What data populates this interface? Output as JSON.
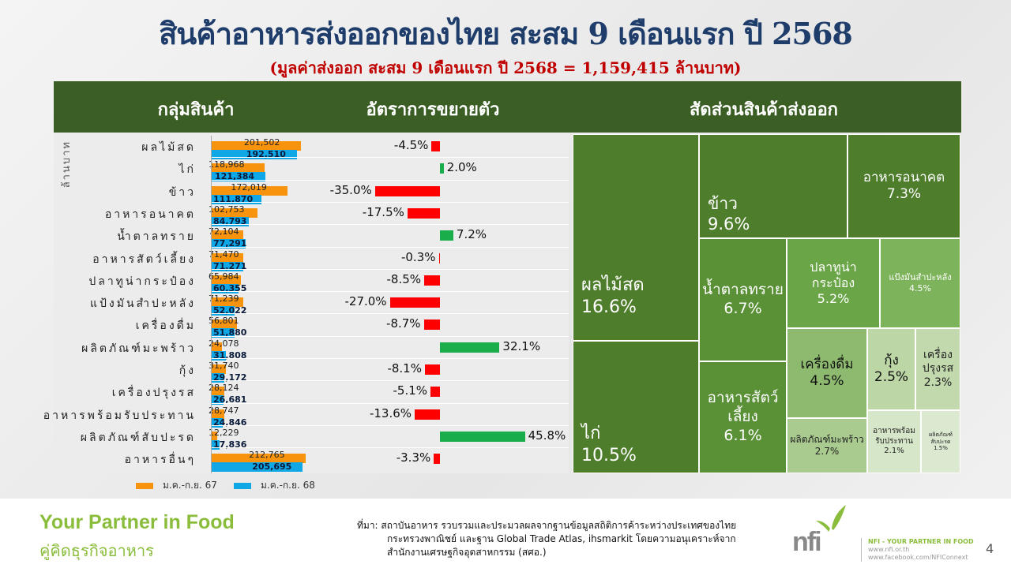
{
  "title": "สินค้าอาหารส่งออกของไทย สะสม 9 เดือนแรก ปี 2568",
  "subtitle": "(มูลค่าส่งออก สะสม 9 เดือนแรก  ปี 2568   =   1,159,415 ล้านบาท)",
  "header": {
    "col1": "กลุ่มสินค้า",
    "col2": "อัตราการขยายตัว",
    "col3": "สัดส่วนสินค้าส่งออก"
  },
  "chart_data": {
    "type": "bar",
    "ylabel": "ล้านบาท",
    "series_names": [
      "ม.ค.-ก.ย. 67",
      "ม.ค.-ก.ย. 68"
    ],
    "colors": {
      "y67": "#f7930d",
      "y68": "#0fa7e6",
      "pos": "#1aad4b",
      "neg": "#ff0000"
    },
    "rows": [
      {
        "name": "ผลไม้สด",
        "v67": "201,502",
        "v68": "192,510",
        "n67": 201502,
        "n68": 192510,
        "growth": -4.5,
        "growth_label": "-4.5%"
      },
      {
        "name": "ไก่",
        "v67": "118,968",
        "v68": "121,384",
        "n67": 118968,
        "n68": 121384,
        "growth": 2.0,
        "growth_label": "2.0%"
      },
      {
        "name": "ข้าว",
        "v67": "172,019",
        "v68": "111,870",
        "n67": 172019,
        "n68": 111870,
        "growth": -35.0,
        "growth_label": "-35.0%"
      },
      {
        "name": "อาหารอนาคต",
        "v67": "102,753",
        "v68": "84,793",
        "n67": 102753,
        "n68": 84793,
        "growth": -17.5,
        "growth_label": "-17.5%"
      },
      {
        "name": "น้ำตาลทราย",
        "v67": "72,104",
        "v68": "77,291",
        "n67": 72104,
        "n68": 77291,
        "growth": 7.2,
        "growth_label": "7.2%"
      },
      {
        "name": "อาหารสัตว์เลี้ยง",
        "v67": "71,470",
        "v68": "71,271",
        "n67": 71470,
        "n68": 71271,
        "growth": -0.3,
        "growth_label": "-0.3%"
      },
      {
        "name": "ปลาทูน่ากระป๋อง",
        "v67": "65,984",
        "v68": "60,355",
        "n67": 65984,
        "n68": 60355,
        "growth": -8.5,
        "growth_label": "-8.5%"
      },
      {
        "name": "แป้งมันสำปะหลัง",
        "v67": "71,239",
        "v68": "52,022",
        "n67": 71239,
        "n68": 52022,
        "growth": -27.0,
        "growth_label": "-27.0%"
      },
      {
        "name": "เครื่องดื่ม",
        "v67": "56,801",
        "v68": "51,880",
        "n67": 56801,
        "n68": 51880,
        "growth": -8.7,
        "growth_label": "-8.7%"
      },
      {
        "name": "ผลิตภัณฑ์มะพร้าว",
        "v67": "24,078",
        "v68": "31,808",
        "n67": 24078,
        "n68": 31808,
        "growth": 32.1,
        "growth_label": "32.1%"
      },
      {
        "name": "กุ้ง",
        "v67": "31,740",
        "v68": "29,172",
        "n67": 31740,
        "n68": 29172,
        "growth": -8.1,
        "growth_label": "-8.1%"
      },
      {
        "name": "เครื่องปรุงรส",
        "v67": "28,124",
        "v68": "26,681",
        "n67": 28124,
        "n68": 26681,
        "growth": -5.1,
        "growth_label": "-5.1%"
      },
      {
        "name": "อาหารพร้อมรับประทาน",
        "v67": "28,747",
        "v68": "24,846",
        "n67": 28747,
        "n68": 24846,
        "growth": -13.6,
        "growth_label": "-13.6%"
      },
      {
        "name": "ผลิตภัณฑ์สับปะรด",
        "v67": "12,229",
        "v68": "17,836",
        "n67": 12229,
        "n68": 17836,
        "growth": 45.8,
        "growth_label": "45.8%"
      },
      {
        "name": "อาหารอื่นๆ",
        "v67": "212,765",
        "v68": "205,695",
        "n67": 212765,
        "n68": 205695,
        "growth": -3.3,
        "growth_label": "-3.3%"
      }
    ],
    "treemap": [
      {
        "label": "ผลไม้สด",
        "pct": "16.6%"
      },
      {
        "label": "ไก่",
        "pct": "10.5%"
      },
      {
        "label": "ข้าว",
        "pct": "9.6%"
      },
      {
        "label": "อาหารอนาคต",
        "pct": "7.3%"
      },
      {
        "label": "น้ำตาลทราย",
        "pct": "6.7%"
      },
      {
        "label": "อาหารสัตว์เลี้ยง",
        "pct": "6.1%"
      },
      {
        "label": "ปลาทูน่ากระป๋อง",
        "pct": "5.2%"
      },
      {
        "label": "แป้งมันสำปะหลัง",
        "pct": "4.5%"
      },
      {
        "label": "เครื่องดื่ม",
        "pct": "4.5%"
      },
      {
        "label": "ผลิตภัณฑ์มะพร้าว",
        "pct": "2.7%"
      },
      {
        "label": "กุ้ง",
        "pct": "2.5%"
      },
      {
        "label": "เครื่องปรุงรส",
        "pct": "2.3%"
      },
      {
        "label": "อาหารพร้อมรับประทาน",
        "pct": "2.1%"
      },
      {
        "label": "ผลิตภัณฑ์สับปะรด",
        "pct": "1.5%"
      }
    ]
  },
  "footer": {
    "slogan": "Your Partner in Food",
    "slogan_th": "คู่คิดธุรกิจอาหาร",
    "source_line1": "ที่มา: สถาบันอาหาร รวบรวมและประมวลผลจากฐานข้อมูลสถิติการค้าระหว่างประเทศของไทย",
    "source_line2": "กระทรวงพาณิชย์ และฐาน Global Trade Atlas, ihsmarkit โดยความอนุเคราะห์จาก",
    "source_line3": "สำนักงานเศรษฐกิจอุตสาหกรรม (สศอ.)",
    "logo_text": "nfi",
    "tagline": "NFI - YOUR PARTNER IN FOOD",
    "website": "www.nfi.or.th",
    "facebook": "www.facebook.com/NFIConnext",
    "page_number": "4"
  }
}
